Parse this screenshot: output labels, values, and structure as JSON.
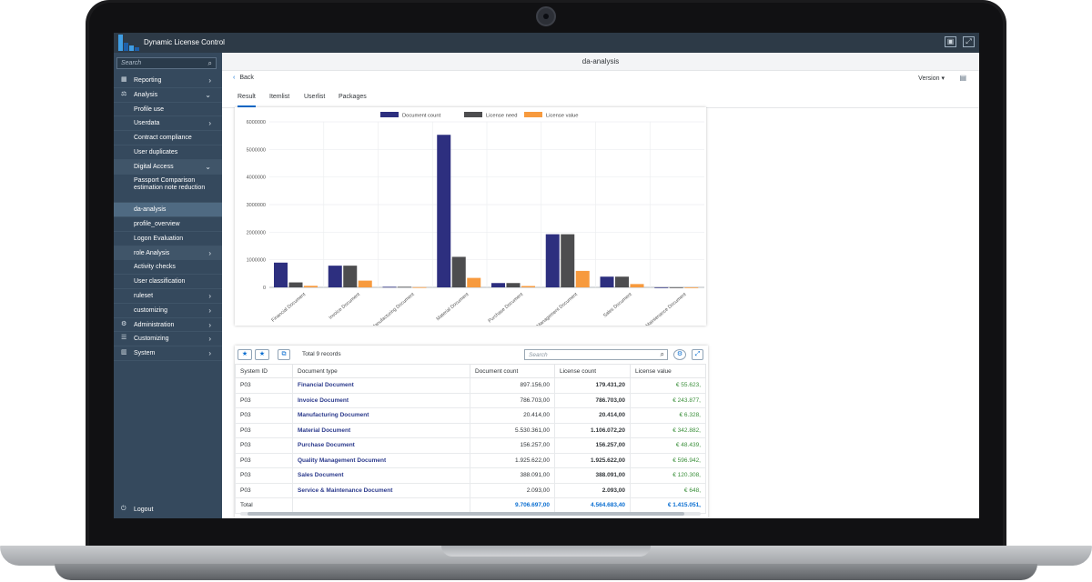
{
  "app": {
    "title": "Dynamic License Control",
    "shell_buttons": [
      "window-icon",
      "fullscreen-icon"
    ]
  },
  "sidebar": {
    "search_placeholder": "Search",
    "items": [
      {
        "label": "Reporting",
        "icon": "report-icon",
        "chevron": "›",
        "level": 0
      },
      {
        "label": "Analysis",
        "icon": "analysis-icon",
        "chevron": "⌄",
        "level": 0
      },
      {
        "label": "Profile use",
        "chevron": "",
        "level": 1
      },
      {
        "label": "Userdata",
        "chevron": "›",
        "level": 1
      },
      {
        "label": "Contract compliance",
        "chevron": "",
        "level": 1
      },
      {
        "label": "User duplicates",
        "chevron": "",
        "level": 1
      },
      {
        "label": "Digital Access",
        "chevron": "⌄",
        "level": 1,
        "group": true
      },
      {
        "label": "Passport Comparison estimation note reduction",
        "chevron": "",
        "level": 1,
        "tall": true
      },
      {
        "label": "da-analysis",
        "chevron": "",
        "level": 1,
        "selected": true
      },
      {
        "label": "profile_overview",
        "chevron": "",
        "level": 1
      },
      {
        "label": "Logon Evaluation",
        "chevron": "",
        "level": 1
      },
      {
        "label": "role Analysis",
        "chevron": "›",
        "level": 1,
        "group": true
      },
      {
        "label": "Activity checks",
        "chevron": "",
        "level": 1
      },
      {
        "label": "User classification",
        "chevron": "",
        "level": 1
      },
      {
        "label": "ruleset",
        "chevron": "›",
        "level": 1
      },
      {
        "label": "customizing",
        "chevron": "›",
        "level": 1
      },
      {
        "label": "Administration",
        "icon": "admin-icon",
        "chevron": "›",
        "level": 0
      },
      {
        "label": "Customizing",
        "icon": "customizing-icon",
        "chevron": "›",
        "level": 0
      },
      {
        "label": "System",
        "icon": "system-icon",
        "chevron": "›",
        "level": 0
      }
    ],
    "logout": "Logout"
  },
  "page": {
    "title": "da-analysis",
    "back": "Back",
    "version": "Version",
    "tabs": [
      "Result",
      "Itemlist",
      "Userlist",
      "Packages"
    ],
    "active_tab": "Result"
  },
  "chart_data": {
    "type": "bar",
    "categories": [
      "Financial Document",
      "Invoice Document",
      "Manufacturing Document",
      "Material Document",
      "Purchase Document",
      "Quality Management Document",
      "Sales Document",
      "Service & Maintenance Document"
    ],
    "category_labels": [
      "Financial Document",
      "Invoice Document",
      "Manufacturing Document",
      "Material Document",
      "Purchase Document",
      "y Management Document",
      "Sales Document",
      "& Maintenance Document"
    ],
    "series": [
      {
        "name": "Document count",
        "color": "#2d2f7f",
        "values": [
          897156,
          786703,
          20414,
          5530361,
          156257,
          1925622,
          388091,
          2093
        ]
      },
      {
        "name": "License need",
        "color": "#4d4d4f",
        "values": [
          179431,
          786703,
          20414,
          1106072,
          156257,
          1925622,
          388091,
          2093
        ]
      },
      {
        "name": "License value",
        "color": "#f79a3e",
        "values": [
          55623,
          243877,
          6328,
          342882,
          48439,
          596942,
          120308,
          648
        ]
      }
    ],
    "ylim": [
      0,
      6000000
    ],
    "yticks": [
      "0",
      "1000000",
      "2000000",
      "3000000",
      "4000000",
      "5000000",
      "6000000"
    ],
    "legend": "top"
  },
  "table": {
    "total_records": "Total 9 records",
    "search_placeholder": "Search",
    "columns": [
      "System ID",
      "Document type",
      "Document count",
      "License count",
      "License value"
    ],
    "rows": [
      [
        "P03",
        "Financial Document",
        "897.156,00",
        "179.431,20",
        "€ 55.623,"
      ],
      [
        "P03",
        "Invoice Document",
        "786.703,00",
        "786.703,00",
        "€ 243.877,"
      ],
      [
        "P03",
        "Manufacturing Document",
        "20.414,00",
        "20.414,00",
        "€ 6.328,"
      ],
      [
        "P03",
        "Material Document",
        "5.530.361,00",
        "1.106.072,20",
        "€ 342.882,"
      ],
      [
        "P03",
        "Purchase Document",
        "156.257,00",
        "156.257,00",
        "€ 48.439,"
      ],
      [
        "P03",
        "Quality Management Document",
        "1.925.622,00",
        "1.925.622,00",
        "€ 596.942,"
      ],
      [
        "P03",
        "Sales Document",
        "388.091,00",
        "388.091,00",
        "€ 120.308,"
      ],
      [
        "P03",
        "Service & Maintenance Document",
        "2.093,00",
        "2.093,00",
        "€ 648,"
      ]
    ],
    "total": {
      "label": "Total",
      "document_count": "9.706.697,00",
      "license_count": "4.564.683,40",
      "license_value": "€ 1.415.051,"
    }
  }
}
